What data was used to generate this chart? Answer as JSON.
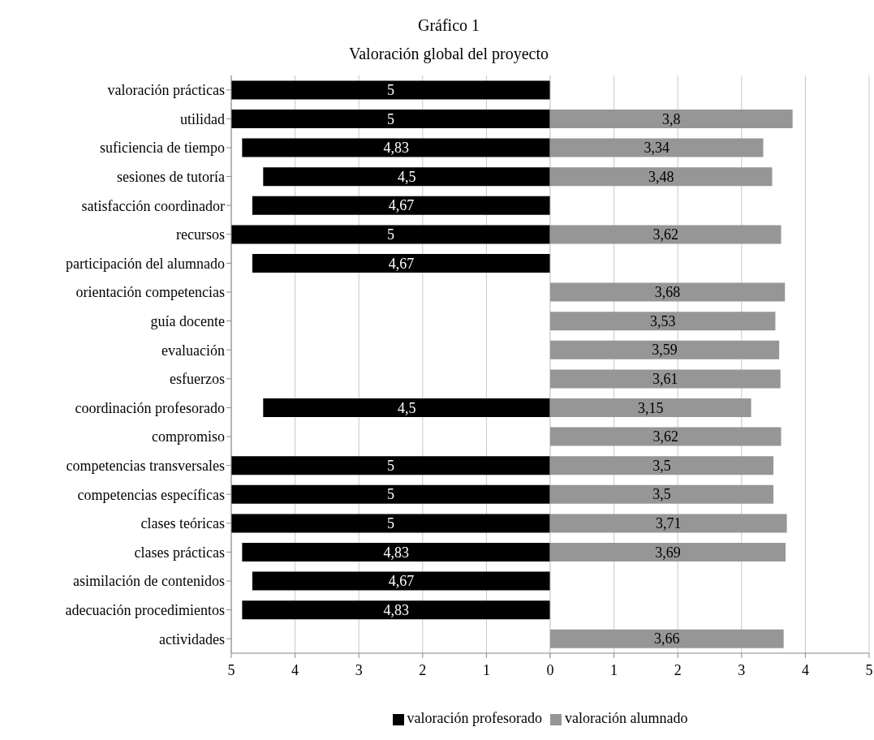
{
  "chart_data": [
    {
      "type": "bar",
      "orientation": "horizontal",
      "title": "Gráfico 1",
      "subtitle": "Valoración global del proyecto",
      "categories": [
        "valoración prácticas",
        "utilidad",
        "suficiencia de tiempo",
        "sesiones de tutoría",
        "satisfacción coordinador",
        "recursos",
        "participación del alumnado",
        "orientación competencias",
        "guía docente",
        "evaluación",
        "esfuerzos",
        "coordinación profesorado",
        "compromiso",
        "competencias transversales",
        "competencias específicas",
        "clases teóricas",
        "clases prácticas",
        "asimilación de contenidos",
        "adecuación procedimientos",
        "actividades"
      ],
      "series": [
        {
          "name": "valoración profesorado",
          "color": "#000000",
          "values": [
            5,
            5,
            4.83,
            4.5,
            4.67,
            5,
            4.67,
            null,
            null,
            null,
            null,
            4.5,
            null,
            5,
            5,
            5,
            4.83,
            4.67,
            4.83,
            null
          ],
          "value_labels": [
            "5",
            "5",
            "4,83",
            "4,5",
            "4,67",
            "5",
            "4,67",
            null,
            null,
            null,
            null,
            "4,5",
            null,
            "5",
            "5",
            "5",
            "4,83",
            "4,67",
            "4,83",
            null
          ]
        }
      ],
      "xlim": [
        5,
        0
      ],
      "xticks": [
        5,
        4,
        3,
        2,
        1,
        {
          "value": 0,
          "label": null
        }
      ],
      "grid": "x",
      "legend": "bottom right"
    },
    {
      "type": "bar",
      "orientation": "horizontal",
      "categories": [
        null,
        null,
        null,
        null,
        null,
        null,
        null,
        null,
        null,
        null,
        null,
        null,
        null,
        null,
        null,
        null,
        null,
        null,
        null,
        null
      ],
      "series": [
        {
          "name": "valoración alumnado",
          "color": "#969696",
          "values": [
            null,
            3.8,
            3.34,
            3.48,
            null,
            3.62,
            null,
            3.68,
            3.53,
            3.59,
            3.61,
            3.15,
            3.62,
            3.5,
            3.5,
            3.71,
            3.69,
            null,
            null,
            3.66
          ],
          "value_labels": [
            null,
            "3,8",
            "3,34",
            "3,48",
            null,
            "3,62",
            null,
            "3,68",
            "3,53",
            "3,59",
            "3,61",
            "3,15",
            "3,62",
            "3,5",
            "3,5",
            "3,71",
            "3,69",
            null,
            null,
            "3,66"
          ]
        }
      ],
      "xlim": [
        0,
        5
      ],
      "xticks": [
        0,
        1,
        2,
        3,
        4,
        5
      ],
      "grid": "x",
      "legend": "bottom left",
      "tick_labels": "x"
    }
  ]
}
